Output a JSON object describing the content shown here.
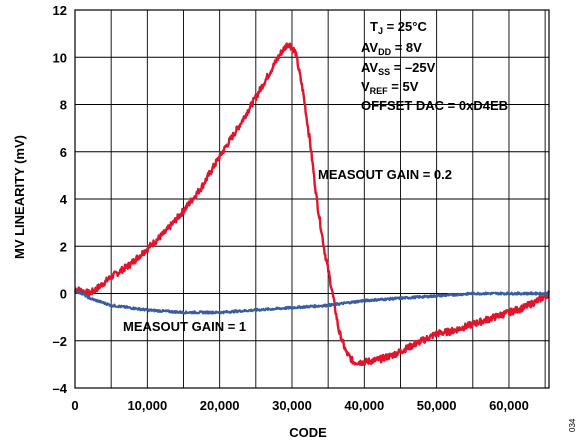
{
  "chart_data": {
    "type": "line",
    "xlabel": "CODE",
    "ylabel": "MV LINEARITY (mV)",
    "xlim": [
      0,
      65535
    ],
    "ylim": [
      -4,
      12
    ],
    "x_ticks": [
      0,
      10000,
      20000,
      30000,
      40000,
      50000,
      60000
    ],
    "x_tick_labels": [
      "0",
      "10,000",
      "20,000",
      "30,000",
      "40,000",
      "50,000",
      "60,000"
    ],
    "y_ticks": [
      -4,
      -2,
      0,
      2,
      4,
      6,
      8,
      10,
      12
    ],
    "y_tick_labels": [
      "–4",
      "–2",
      "0",
      "2",
      "4",
      "6",
      "8",
      "10",
      "12"
    ],
    "grid": true,
    "conditions": {
      "tj_main": "T",
      "tj_sub": "J",
      "tj_rest": " = 25°C",
      "avdd_main": "AV",
      "avdd_sub": "DD",
      "avdd_rest": " = 8V",
      "avss_main": "AV",
      "avss_sub": "SS",
      "avss_rest": " = –25V",
      "vref_main": "V",
      "vref_sub": "REF",
      "vref_rest": " = 5V",
      "offset": "OFFSET DAC = 0xD4EB"
    },
    "figure_id": "034",
    "series": [
      {
        "name": "MEASOUT GAIN = 0.2",
        "color": "#e0142b",
        "x": [
          0,
          1000,
          2000,
          3000,
          5000,
          7500,
          10000,
          12500,
          15000,
          17500,
          20000,
          22500,
          25000,
          27000,
          28500,
          29500,
          30500,
          31500,
          32500,
          33500,
          34500,
          35500,
          36500,
          37500,
          38500,
          40000,
          42000,
          44000,
          46000,
          48000,
          50000,
          52000,
          54000,
          56000,
          58000,
          60000,
          62000,
          64000,
          65535
        ],
        "y": [
          0.2,
          0.1,
          0.0,
          0.2,
          0.7,
          1.2,
          1.9,
          2.6,
          3.5,
          4.5,
          5.8,
          7.0,
          8.3,
          9.4,
          10.2,
          10.6,
          10.2,
          8.6,
          6.4,
          3.8,
          1.8,
          0.2,
          -1.6,
          -2.5,
          -2.9,
          -2.9,
          -2.8,
          -2.6,
          -2.3,
          -2.0,
          -1.7,
          -1.6,
          -1.4,
          -1.2,
          -1.0,
          -0.8,
          -0.6,
          -0.3,
          0.0
        ]
      },
      {
        "name": "MEASOUT GAIN = 1",
        "color": "#3a5da0",
        "x": [
          0,
          1000,
          2000,
          5000,
          10000,
          15000,
          20000,
          25000,
          30000,
          35000,
          40000,
          45000,
          50000,
          55000,
          60000,
          63000,
          65535
        ],
        "y": [
          0.1,
          0.0,
          -0.2,
          -0.5,
          -0.7,
          -0.8,
          -0.8,
          -0.7,
          -0.6,
          -0.5,
          -0.3,
          -0.2,
          -0.1,
          0.0,
          0.0,
          0.0,
          0.0
        ]
      }
    ]
  }
}
